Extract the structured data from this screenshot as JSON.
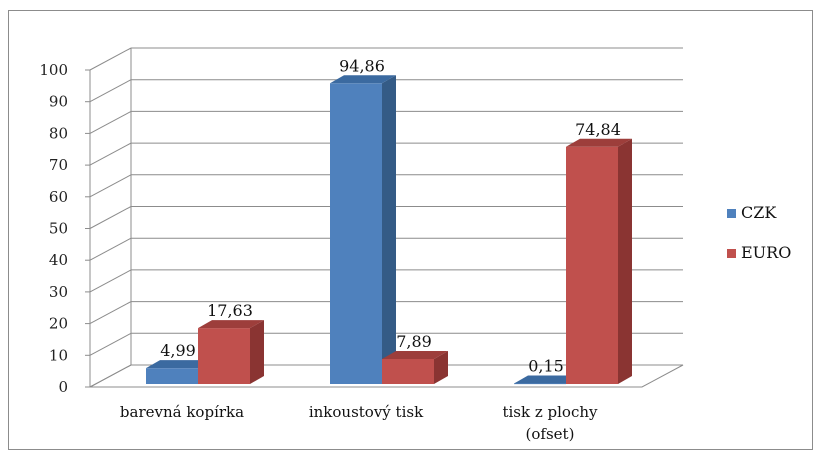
{
  "chart_data": {
    "type": "bar",
    "categories": [
      "barevná kopírka",
      "inkoustový tisk",
      "tisk z plochy (ofset)"
    ],
    "category_lines": [
      [
        "barevná kopírka"
      ],
      [
        "inkoustový tisk"
      ],
      [
        "tisk z plochy",
        "(ofset)"
      ]
    ],
    "series": [
      {
        "name": "CZK",
        "values": [
          4.99,
          94.86,
          0.15
        ],
        "labels": [
          "4,99",
          "94,86",
          "0,15"
        ],
        "color": "#4f81bd",
        "side": "#345b86",
        "top": "#3b6aa0"
      },
      {
        "name": "EURO",
        "values": [
          17.63,
          7.89,
          74.84
        ],
        "labels": [
          "17,63",
          "7,89",
          "74,84"
        ],
        "color": "#c0504d",
        "side": "#8a3432",
        "top": "#9d3e3b"
      }
    ],
    "ylim": [
      0,
      100
    ],
    "yticks": [
      0,
      10,
      20,
      30,
      40,
      50,
      60,
      70,
      80,
      90,
      100
    ],
    "grid": true,
    "legend_position": "right",
    "three_d": true
  }
}
